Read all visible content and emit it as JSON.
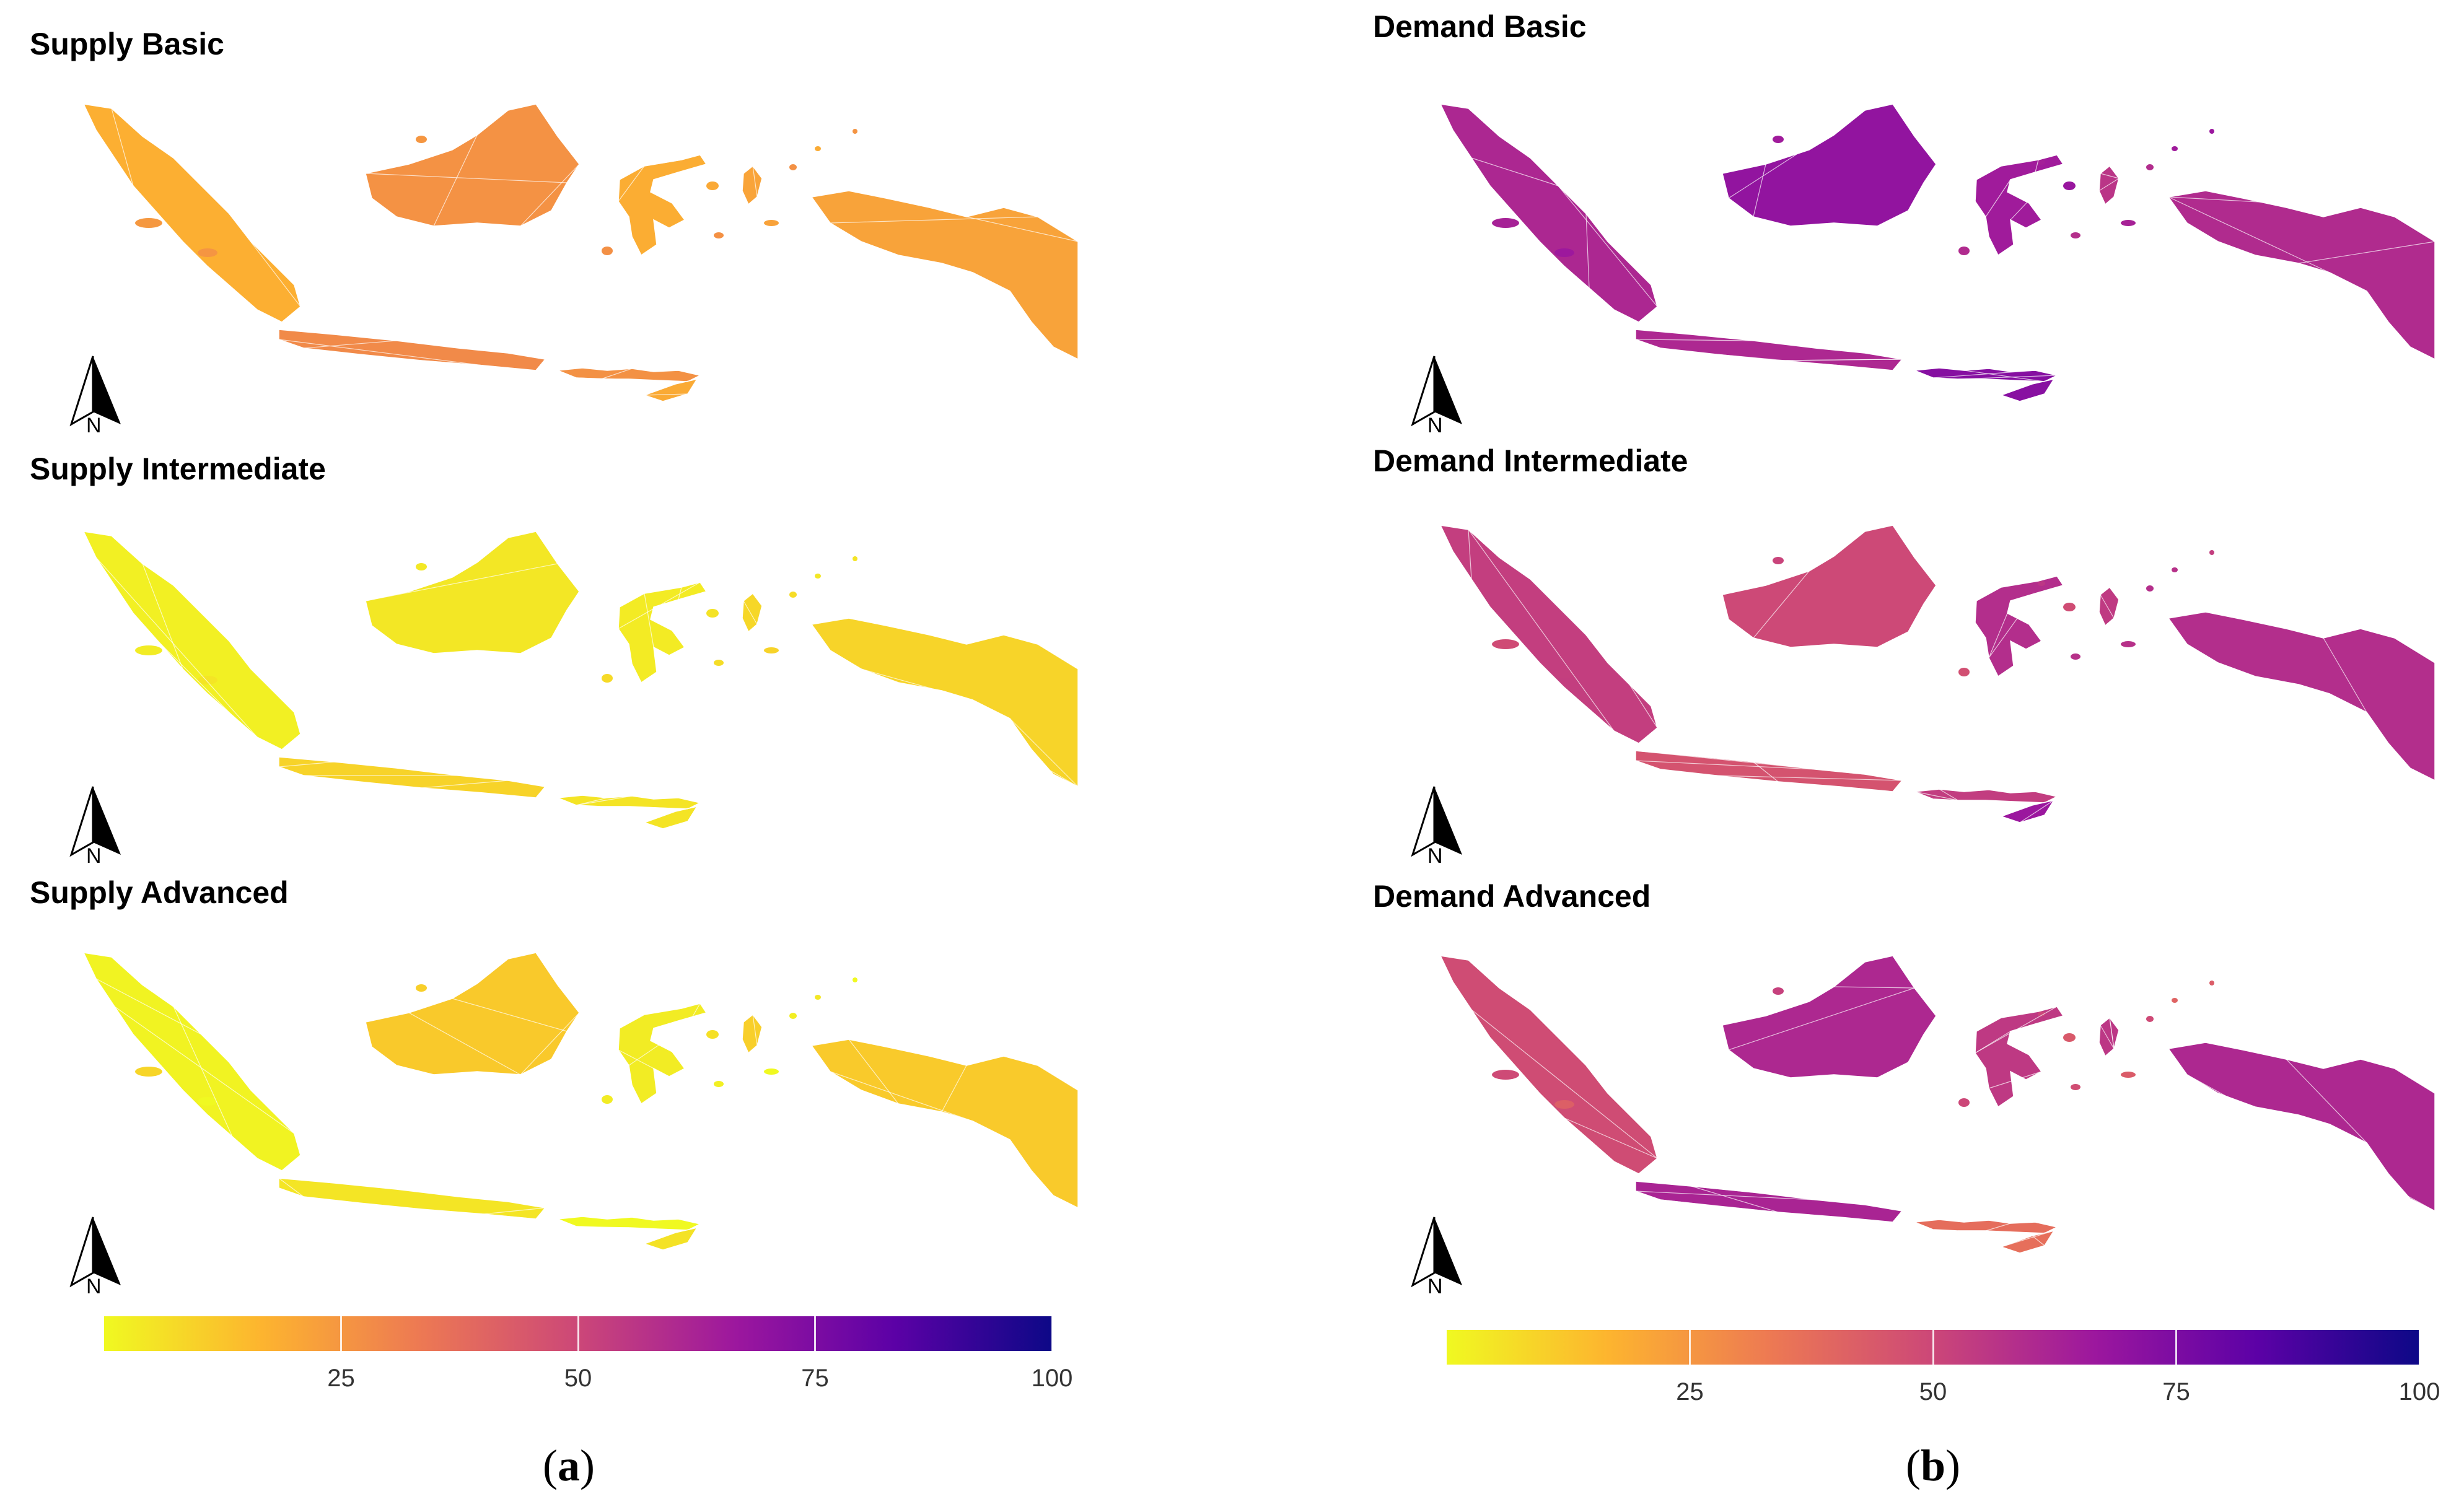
{
  "panel_a": {
    "label_open": "(",
    "label_letter": "a",
    "label_close": ")",
    "maps": [
      {
        "title": "Supply Basic",
        "fill_level": 22
      },
      {
        "title": "Supply Intermediate",
        "fill_level": 5
      },
      {
        "title": "Supply Advanced",
        "fill_level": 3
      }
    ],
    "colorbar_ticks": [
      "25",
      "50",
      "75",
      "100"
    ]
  },
  "panel_b": {
    "label_open": "(",
    "label_letter": "b",
    "label_close": ")",
    "maps": [
      {
        "title": "Demand Basic",
        "fill_level": 62
      },
      {
        "title": "Demand Intermediate",
        "fill_level": 52
      },
      {
        "title": "Demand Advanced",
        "fill_level": 45
      }
    ],
    "colorbar_ticks": [
      "25",
      "50",
      "75",
      "100"
    ]
  },
  "north_label": "N",
  "colorscale": {
    "name": "plasma",
    "min": 0,
    "max": 100,
    "stops": [
      "#f0f921",
      "#fdb42f",
      "#ed7953",
      "#cc4778",
      "#9c179e",
      "#5c01a6",
      "#0d0887"
    ]
  }
}
